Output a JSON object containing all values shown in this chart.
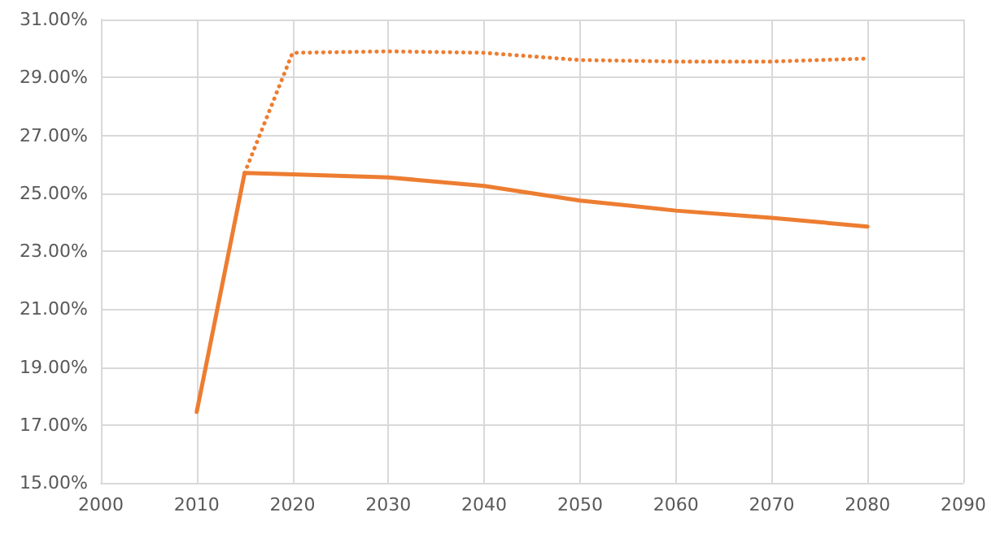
{
  "chart_data": {
    "type": "line",
    "x": [
      2010,
      2015,
      2020,
      2030,
      2040,
      2050,
      2060,
      2070,
      2080
    ],
    "series": [
      {
        "color": "#ed7d31",
        "line_style": "dotted",
        "values": [
          null,
          25.7,
          29.85,
          29.9,
          29.85,
          29.6,
          29.55,
          29.55,
          29.65
        ]
      },
      {
        "color": "#ed7d31",
        "line_style": "solid",
        "values": [
          17.45,
          25.7,
          25.65,
          25.55,
          25.25,
          24.75,
          24.4,
          24.15,
          23.85
        ]
      }
    ],
    "xlim": [
      2000,
      2090
    ],
    "xticks": [
      2000,
      2010,
      2020,
      2030,
      2040,
      2050,
      2060,
      2070,
      2080,
      2090
    ],
    "ylim": [
      15,
      31
    ],
    "yticks": [
      {
        "value": 15,
        "label": "15.00%"
      },
      {
        "value": 17,
        "label": "17.00%"
      },
      {
        "value": 19,
        "label": "19.00%"
      },
      {
        "value": 21,
        "label": "21.00%"
      },
      {
        "value": 23,
        "label": "23.00%"
      },
      {
        "value": 25,
        "label": "25.00%"
      },
      {
        "value": 27,
        "label": "27.00%"
      },
      {
        "value": 29,
        "label": "29.00%"
      },
      {
        "value": 31,
        "label": "31.00%"
      }
    ],
    "grid": true,
    "marker": "none"
  }
}
